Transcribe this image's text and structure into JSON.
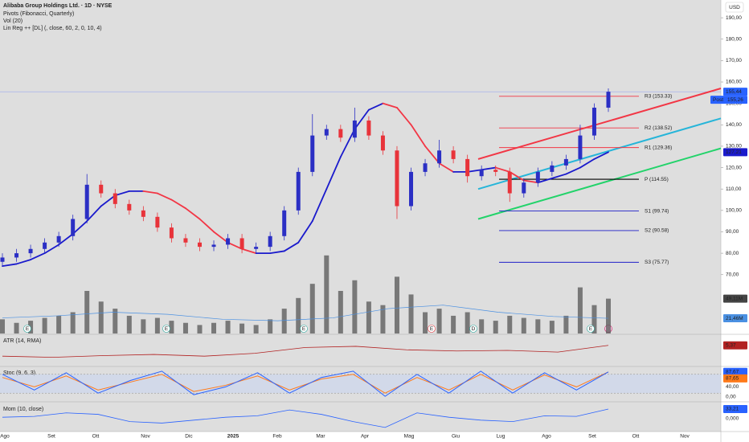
{
  "chart_data": {
    "type": "candlestick",
    "title": "Alibaba Group Holdings Ltd. · 1D · NYSE",
    "indicator_titles": [
      "Pivots (Fibonacci, Quarterly)",
      "Vol (20)",
      "Lin Reg ++ [DL] (, close, 60, 2, 0, 10, 4)"
    ],
    "currency": "USD",
    "up_color": "#2b2fc4",
    "down_color": "#e8333a",
    "open": [
      76,
      78,
      80,
      82,
      85,
      88,
      96,
      112,
      108,
      103,
      100,
      97,
      92,
      87,
      85,
      83,
      84,
      87,
      82,
      83,
      88,
      100,
      118,
      135,
      138,
      134,
      142,
      135,
      128,
      102,
      118,
      122,
      128,
      124,
      116,
      119,
      118,
      108,
      113,
      118,
      121,
      124,
      135,
      148
    ],
    "high": [
      80,
      82,
      84,
      87,
      90,
      98,
      117,
      114,
      110,
      105,
      102,
      99,
      94,
      89,
      87,
      86,
      89,
      89,
      85,
      90,
      102,
      120,
      145,
      140,
      140,
      148,
      144,
      137,
      130,
      120,
      124,
      133,
      130,
      126,
      121,
      121,
      120,
      115,
      120,
      123,
      126,
      140,
      150,
      157
    ],
    "low": [
      74,
      76,
      78,
      80,
      83,
      86,
      94,
      106,
      101,
      98,
      95,
      90,
      85,
      83,
      81,
      81,
      82,
      80,
      80,
      81,
      86,
      98,
      116,
      133,
      132,
      132,
      133,
      126,
      96,
      100,
      116,
      120,
      122,
      113,
      114,
      116,
      104,
      106,
      111,
      116,
      119,
      122,
      133,
      146
    ],
    "close": [
      78,
      80,
      82,
      85,
      88,
      96,
      112,
      108,
      103,
      100,
      97,
      92,
      87,
      85,
      83,
      84,
      87,
      82,
      83,
      88,
      100,
      118,
      135,
      138,
      134,
      142,
      135,
      128,
      102,
      118,
      122,
      128,
      124,
      116,
      119,
      118,
      108,
      113,
      118,
      121,
      124,
      135,
      148,
      155.44
    ],
    "ylim": [
      42.5,
      198.3
    ],
    "yticks": [
      {
        "value": 70,
        "label": "70,00"
      },
      {
        "value": 80,
        "label": "80,00"
      },
      {
        "value": 90,
        "label": "90,00"
      },
      {
        "value": 100,
        "label": "100,00"
      },
      {
        "value": 110,
        "label": "110,00"
      },
      {
        "value": 120,
        "label": "120,00"
      },
      {
        "value": 130,
        "label": "130,00"
      },
      {
        "value": 140,
        "label": "140,00"
      },
      {
        "value": 150,
        "label": "150,00"
      },
      {
        "value": 160,
        "label": "160,00"
      },
      {
        "value": 170,
        "label": "170,00"
      },
      {
        "value": 180,
        "label": "180,00"
      },
      {
        "value": 190,
        "label": "190,00"
      }
    ],
    "last_price": {
      "value": 155.44,
      "label": "155,44",
      "color": "#2962ff"
    },
    "post": {
      "tag": "Post",
      "value": 155.26,
      "label": "155,26"
    },
    "xticks": [
      "Ago",
      "Set",
      "Ott",
      "Nov",
      "Dic",
      "2025",
      "Feb",
      "Mar",
      "Apr",
      "Mag",
      "Giu",
      "Lug",
      "Ago",
      "Set",
      "Ott",
      "Nov"
    ],
    "volume": {
      "values": [
        20,
        15,
        18,
        22,
        25,
        30,
        60,
        45,
        35,
        25,
        20,
        22,
        18,
        15,
        12,
        15,
        18,
        14,
        12,
        20,
        35,
        50,
        70,
        110,
        60,
        75,
        45,
        40,
        80,
        55,
        30,
        35,
        25,
        30,
        20,
        18,
        25,
        22,
        20,
        18,
        25,
        65,
        40,
        49.11
      ],
      "last_label": "49,11M",
      "ma": [
        22,
        25,
        30,
        27,
        20,
        18,
        22,
        35,
        40,
        30,
        24,
        21.46
      ],
      "ma_label": "21,46M",
      "vlim": [
        0,
        120
      ],
      "color": "#555555",
      "ma_color": "#4a90e2"
    },
    "linreg": [
      74,
      75,
      77,
      80,
      84,
      89,
      95,
      102,
      107,
      109,
      109,
      108,
      105,
      101,
      96,
      90,
      85,
      82,
      80,
      80,
      81,
      85,
      95,
      110,
      125,
      138,
      147,
      150,
      148,
      140,
      130,
      122,
      118,
      118,
      119,
      120,
      118,
      114,
      113,
      115,
      117,
      120,
      124,
      127.21
    ],
    "linreg_label": "127,21",
    "linreg_up_color": "#1a1acc",
    "linreg_down_color": "#f23645",
    "channel": [
      {
        "values": [
          124,
          157
        ],
        "color": "#f23645"
      },
      {
        "values": [
          110,
          143
        ],
        "color": "#26b5d9"
      },
      {
        "values": [
          96,
          129
        ],
        "color": "#22d36a"
      }
    ],
    "pivots": {
      "levels": [
        {
          "label": "R3 (153.33)",
          "value": 153.33,
          "color": "#f23645"
        },
        {
          "label": "R2 (138.52)",
          "value": 138.52,
          "color": "#f23645"
        },
        {
          "label": "R1 (129.36)",
          "value": 129.36,
          "color": "#f23645"
        },
        {
          "label": "P (114.55)",
          "value": 114.55,
          "color": "#000000"
        },
        {
          "label": "S1 (99.74)",
          "value": 99.74,
          "color": "#1e1ec8"
        },
        {
          "label": "S2 (90.58)",
          "value": 90.58,
          "color": "#1e1ec8"
        },
        {
          "label": "S3 (75.77)",
          "value": 75.77,
          "color": "#1e1ec8"
        }
      ]
    },
    "events": [
      "E",
      "E",
      "E",
      "E",
      "D",
      "E"
    ],
    "atr": {
      "title": "ATR (14, RMA)",
      "values": [
        3.5,
        3.3,
        3.6,
        3.8,
        3.5,
        4.0,
        5.0,
        5.2,
        4.6,
        4.4,
        4.5,
        4.2,
        5.37
      ],
      "last_label": "5,37",
      "ylim": [
        2,
        7
      ],
      "color": "#b22222"
    },
    "stoch": {
      "title": "Stoc (9, 6, 3)",
      "k": [
        80,
        30,
        85,
        20,
        60,
        90,
        15,
        40,
        85,
        20,
        70,
        90,
        10,
        80,
        20,
        90,
        20,
        85,
        30,
        87.67
      ],
      "d": [
        70,
        40,
        75,
        30,
        55,
        80,
        25,
        45,
        75,
        30,
        65,
        80,
        20,
        70,
        30,
        80,
        30,
        78,
        40,
        87.65
      ],
      "k_label": "87,67",
      "d_label": "87,65",
      "k_color": "#2962ff",
      "d_color": "#ff7a1a",
      "band": [
        20,
        80
      ],
      "ylim": [
        0,
        100
      ],
      "yticks": [
        {
          "value": 40,
          "label": "40,00"
        },
        {
          "value": 0,
          "label": "0,00"
        }
      ]
    },
    "mom": {
      "title": "Mom (10, close)",
      "values": [
        5,
        8,
        20,
        15,
        -10,
        -15,
        -5,
        5,
        10,
        30,
        15,
        -10,
        -30,
        20,
        5,
        -5,
        -10,
        10,
        8,
        33.21
      ],
      "last_label": "33,21",
      "ylim": [
        -41.5,
        49.8
      ],
      "yticks": [
        {
          "value": 0,
          "label": "0,000"
        }
      ],
      "color": "#2962ff"
    }
  }
}
